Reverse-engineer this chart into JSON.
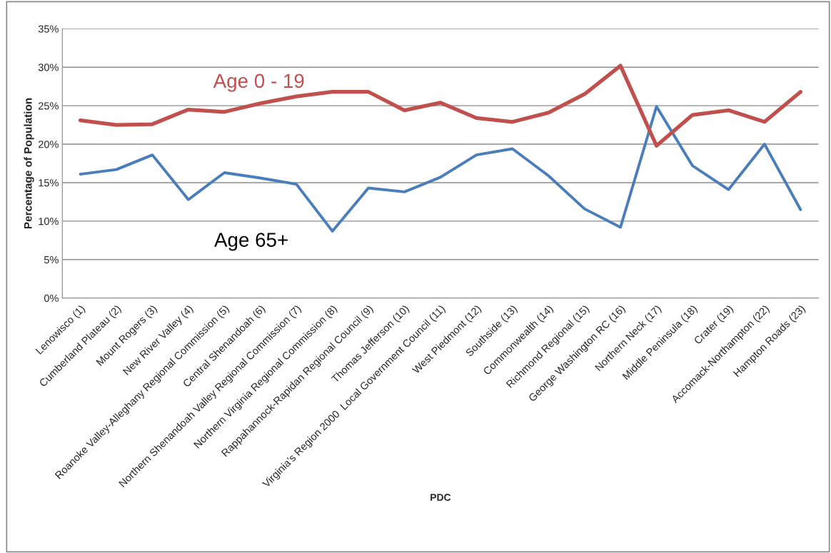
{
  "chart_data": {
    "type": "line",
    "xlabel": "PDC",
    "ylabel": "Percentage of Population",
    "categories": [
      "Lenowisco (1)",
      "Cumberland Plateau (2)",
      "Mount Rogers (3)",
      "New River Valley (4)",
      "Roanoke Valley-Alleghany Regional Commission (5)",
      "Central Shenandoah (6)",
      "Northern Shenandoah Valley Regional Commission (7)",
      "Northern Virginia Regional Commission (8)",
      "Rappahannock-Rapidan Regional Council (9)",
      "Thomas Jefferson (10)",
      "Virginia’s Region 2000  Local Government Council (11)",
      "West Piedmont (12)",
      "Southside (13)",
      "Commonwealth (14)",
      "Richmond Regional (15)",
      "George Washington RC (16)",
      "Northern Neck (17)",
      "Middle Peninsula (18)",
      "Crater (19)",
      "Accomack-Northampton (22)",
      "Hampton Roads (23)"
    ],
    "series": [
      {
        "name": "Age 0 - 19",
        "color": "#c0504d",
        "values": [
          23.1,
          22.5,
          22.6,
          24.5,
          24.2,
          25.3,
          26.2,
          26.8,
          26.8,
          24.4,
          25.4,
          23.4,
          22.9,
          24.1,
          26.5,
          30.2,
          19.8,
          23.8,
          24.4,
          22.9,
          26.8
        ]
      },
      {
        "name": "Age 65+",
        "color": "#4a7ebb",
        "values": [
          16.1,
          16.7,
          18.6,
          12.8,
          16.3,
          15.6,
          14.8,
          8.7,
          14.3,
          13.8,
          15.7,
          18.6,
          19.4,
          15.9,
          11.6,
          9.2,
          24.9,
          17.2,
          14.1,
          20.0,
          11.5
        ]
      }
    ],
    "ylim": [
      0,
      35
    ],
    "yticks": [
      {
        "value": 0,
        "label": "0%"
      },
      {
        "value": 5,
        "label": "5%"
      },
      {
        "value": 10,
        "label": "10%"
      },
      {
        "value": 15,
        "label": "15%"
      },
      {
        "value": 20,
        "label": "20%"
      },
      {
        "value": 25,
        "label": "25%"
      },
      {
        "value": 30,
        "label": "30%"
      },
      {
        "value": 35,
        "label": "35%"
      }
    ],
    "grid": "y",
    "legend": false,
    "marker": "none",
    "line_style": "solid"
  }
}
